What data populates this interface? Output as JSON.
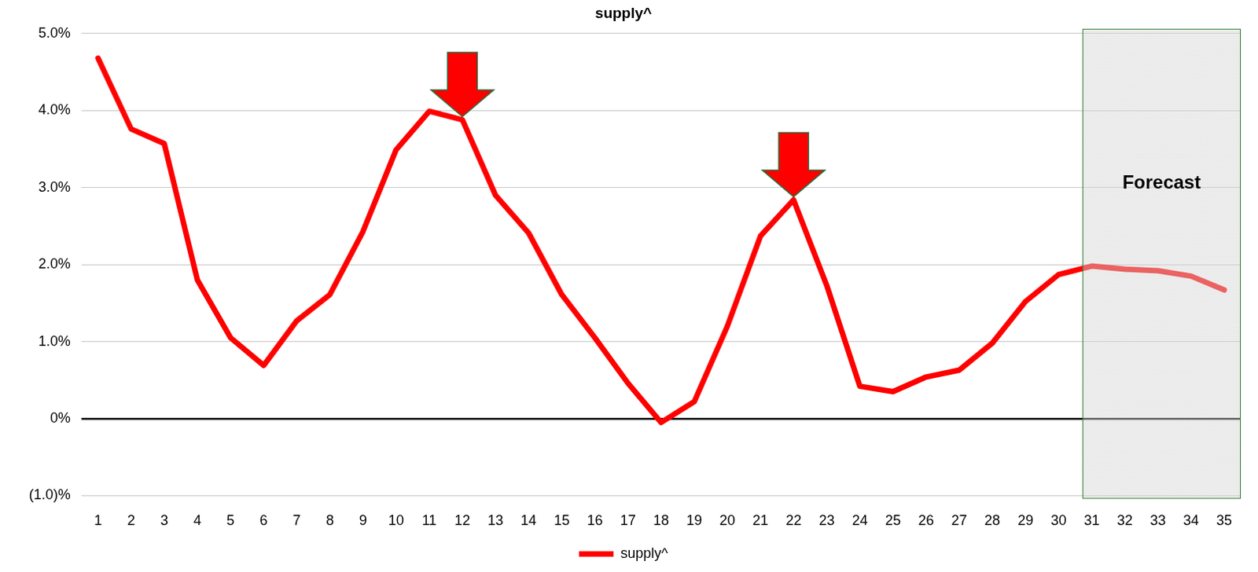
{
  "chart_data": {
    "type": "line",
    "title": "supply^",
    "categories": [
      1,
      2,
      3,
      4,
      5,
      6,
      7,
      8,
      9,
      10,
      11,
      12,
      13,
      14,
      15,
      16,
      17,
      18,
      19,
      20,
      21,
      22,
      23,
      24,
      25,
      26,
      27,
      28,
      29,
      30,
      31,
      32,
      33,
      34,
      35
    ],
    "series": [
      {
        "name": "supply^",
        "color": "#ff0000",
        "values": [
          4.68,
          3.76,
          3.57,
          1.8,
          1.05,
          0.69,
          1.27,
          1.61,
          2.43,
          3.49,
          3.99,
          3.88,
          2.9,
          2.41,
          1.61,
          1.05,
          0.46,
          -0.05,
          0.22,
          1.2,
          2.37,
          2.84,
          1.73,
          0.42,
          0.35,
          0.54,
          0.63,
          0.98,
          1.52,
          1.87,
          1.98,
          1.94,
          1.92,
          1.85,
          1.67
        ]
      }
    ],
    "ylim": [
      -1,
      5
    ],
    "yticks": [
      {
        "value": -1,
        "label": "(1.0)%"
      },
      {
        "value": 0,
        "label": "0%"
      },
      {
        "value": 1,
        "label": "1.0%"
      },
      {
        "value": 2,
        "label": "2.0%"
      },
      {
        "value": 3,
        "label": "3.0%"
      },
      {
        "value": 4,
        "label": "4.0%"
      },
      {
        "value": 5,
        "label": "5.0%"
      }
    ],
    "grid": true,
    "legend": "bottom",
    "annotations": [
      {
        "type": "arrow",
        "x": 12
      },
      {
        "type": "arrow",
        "x": 22
      },
      {
        "type": "shaded_region",
        "x_range": [
          31,
          35
        ],
        "text": "Forecast"
      }
    ]
  }
}
